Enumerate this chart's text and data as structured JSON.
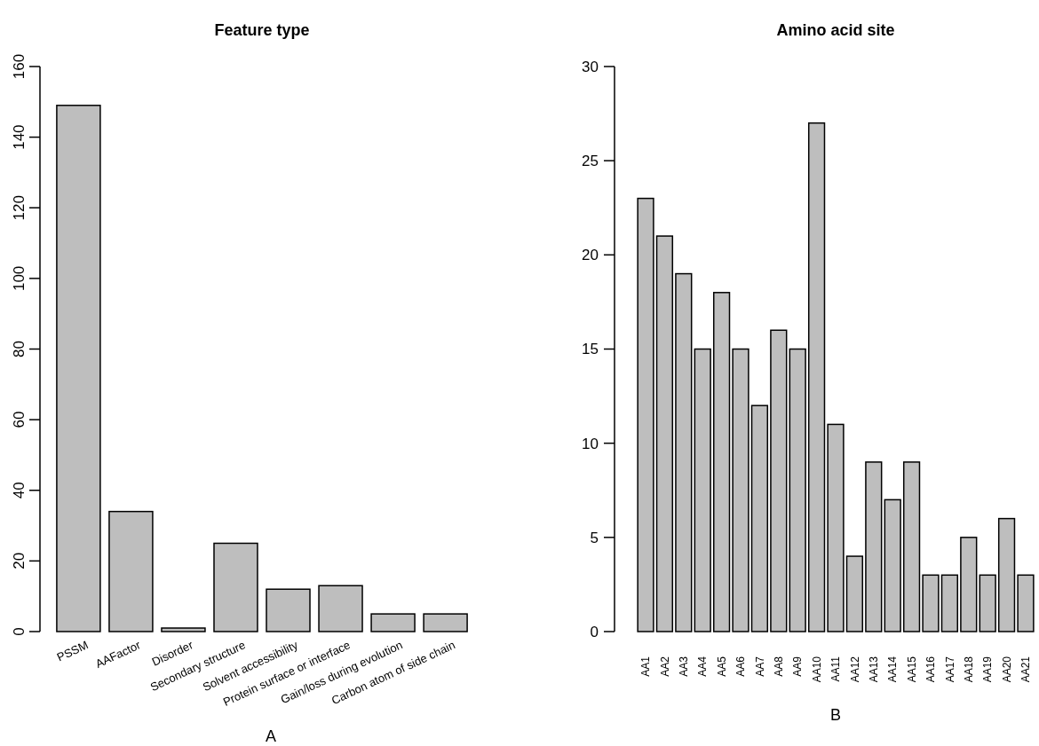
{
  "chart_data": [
    {
      "type": "bar",
      "title": "Feature type",
      "xlabel": "A",
      "categories": [
        "PSSM",
        "AAFactor",
        "Disorder",
        "Secondary structure",
        "Solvent accessibility",
        "Protein surface or interface",
        "Gain/loss during evolution",
        "Carbon atom of side chain"
      ],
      "values": [
        149,
        34,
        1,
        25,
        12,
        13,
        5,
        5
      ],
      "color": "#bebebe",
      "ylim": [
        0,
        160
      ],
      "yticks": [
        0,
        20,
        40,
        60,
        80,
        100,
        120,
        140,
        160
      ],
      "grid": false
    },
    {
      "type": "bar",
      "title": "Amino acid site",
      "xlabel": "B",
      "categories": [
        "AA1",
        "AA2",
        "AA3",
        "AA4",
        "AA5",
        "AA6",
        "AA7",
        "AA8",
        "AA9",
        "AA10",
        "AA11",
        "AA12",
        "AA13",
        "AA14",
        "AA15",
        "AA16",
        "AA17",
        "AA18",
        "AA19",
        "AA20",
        "AA21"
      ],
      "values": [
        23,
        21,
        19,
        15,
        18,
        15,
        12,
        16,
        15,
        27,
        11,
        4,
        9,
        7,
        9,
        3,
        3,
        5,
        3,
        6,
        3
      ],
      "color": "#bebebe",
      "ylim": [
        0,
        30
      ],
      "yticks": [
        0,
        5,
        10,
        15,
        20,
        25,
        30
      ],
      "grid": false
    }
  ]
}
